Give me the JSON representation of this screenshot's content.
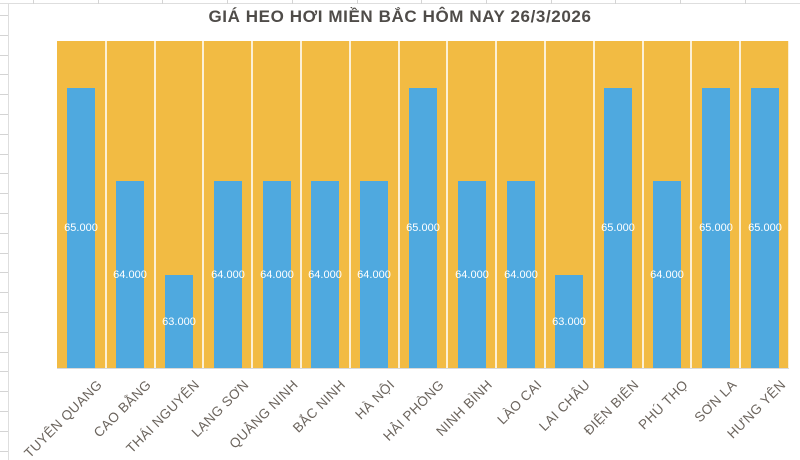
{
  "title_bar": {
    "chart_title": "GIÁ HEO HƠI MIỀN BẮC HÔM NAY 26/3/2026"
  },
  "colors": {
    "plot_background": "#F2BB43",
    "bar_fill": "#4FA9DF",
    "data_label_text": "#FFFFFF",
    "title_text": "#4F4C49",
    "category_label_text": "#6B645D",
    "gridline": "rgba(255,255,255,0.78)",
    "axis_line": "#D9D9D9"
  },
  "chart_data": {
    "type": "bar",
    "title": "GIÁ HEO HƠI MIỀN BẮC HÔM NAY 26/3/2026",
    "categories": [
      "TUYÊN QUANG",
      "CAO BẰNG",
      "THÁI NGUYÊN",
      "LẠNG SƠN",
      "QUẢNG NINH",
      "BẮC NINH",
      "HÀ NỘI",
      "HẢI PHÒNG",
      "NINH BÌNH",
      "LÀO CAI",
      "LAI CHÂU",
      "ĐIỆN BIÊN",
      "PHÚ THỌ",
      "SƠN LA",
      "HƯNG YÊN"
    ],
    "values": [
      65000,
      64000,
      63000,
      64000,
      64000,
      64000,
      64000,
      65000,
      64000,
      64000,
      63000,
      65000,
      64000,
      65000,
      65000
    ],
    "data_labels": [
      "65.000",
      "64.000",
      "63.000",
      "64.000",
      "64.000",
      "64.000",
      "64.000",
      "65.000",
      "64.000",
      "64.000",
      "63.000",
      "65.000",
      "64.000",
      "65.000",
      "65.000"
    ],
    "data_label_position": "center",
    "xlabel": "",
    "ylabel": "",
    "ylim": [
      62000,
      65500
    ],
    "y_axis_labels_visible": false,
    "grid": "vertical category separators only",
    "legend": "none"
  }
}
